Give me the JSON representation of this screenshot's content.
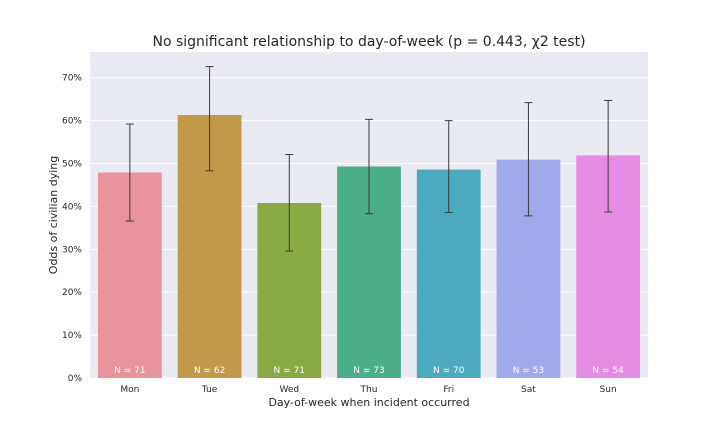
{
  "chart_data": {
    "type": "bar",
    "title": "No significant relationship to day-of-week (p = 0.443, χ2 test)",
    "xlabel": "Day-of-week when incident occurred",
    "ylabel": "Odds of civilian dying",
    "categories": [
      "Mon",
      "Tue",
      "Wed",
      "Thu",
      "Fri",
      "Sat",
      "Sun"
    ],
    "values": [
      0.479,
      0.613,
      0.408,
      0.493,
      0.486,
      0.509,
      0.519
    ],
    "error_low": [
      0.366,
      0.483,
      0.296,
      0.383,
      0.386,
      0.378,
      0.387
    ],
    "error_high": [
      0.592,
      0.726,
      0.521,
      0.603,
      0.6,
      0.642,
      0.647
    ],
    "bar_labels": [
      "N = 71",
      "N = 62",
      "N = 71",
      "N = 73",
      "N = 70",
      "N = 53",
      "N = 54"
    ],
    "colors": [
      "#E8939E",
      "#C29948",
      "#8AA844",
      "#4BAE89",
      "#4BAABD",
      "#A0A9EC",
      "#E68BE3"
    ],
    "ylim": [
      0,
      0.76
    ],
    "yticks": [
      0,
      0.1,
      0.2,
      0.3,
      0.4,
      0.5,
      0.6,
      0.7
    ],
    "ytick_labels": [
      "0%",
      "10%",
      "20%",
      "30%",
      "40%",
      "50%",
      "60%",
      "70%"
    ],
    "grid": true,
    "background": "#EAEAF2",
    "grid_color": "#ffffff",
    "error_color": "#3a3a3a"
  }
}
